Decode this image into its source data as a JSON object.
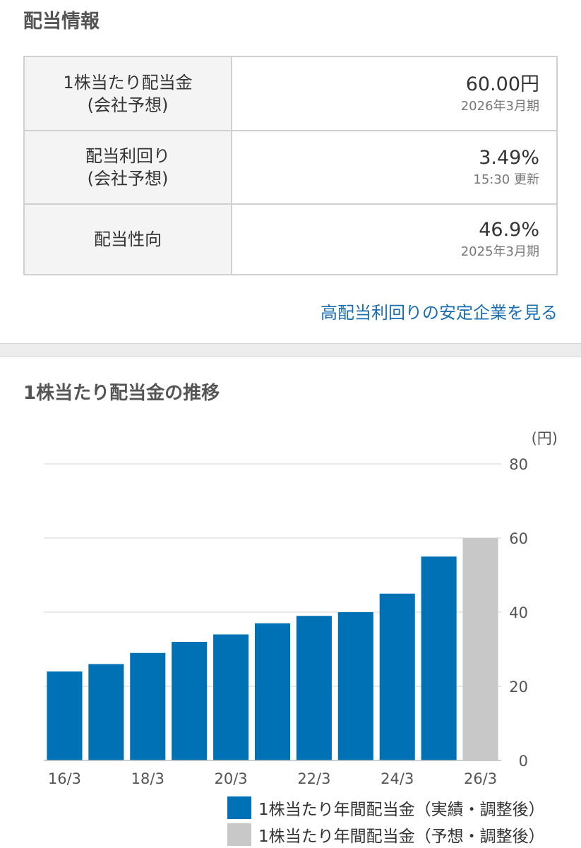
{
  "section_title": "配当情報",
  "rows": [
    {
      "label_line1": "1株当たり配当金",
      "label_line2": "(会社予想)",
      "value": "60.00円",
      "sub": "2026年3月期"
    },
    {
      "label_line1": "配当利回り",
      "label_line2": "(会社予想)",
      "value": "3.49%",
      "sub": "15:30 更新"
    },
    {
      "label_line1": "配当性向",
      "label_line2": "",
      "value": "46.9%",
      "sub": "2025年3月期"
    }
  ],
  "link_text": "高配当利回りの安定企業を見る",
  "chart_title": "1株当たり配当金の推移",
  "chart_data": {
    "type": "bar",
    "categories": [
      "16/3",
      "17/3",
      "18/3",
      "19/3",
      "20/3",
      "21/3",
      "22/3",
      "23/3",
      "24/3",
      "25/3",
      "26/3"
    ],
    "x_tick_labels": [
      "16/3",
      "18/3",
      "20/3",
      "22/3",
      "24/3",
      "26/3"
    ],
    "series": [
      {
        "name": "1株当たり年間配当金（実績・調整後）",
        "color": "#0071b5",
        "values": [
          24,
          26,
          29,
          32,
          34,
          37,
          39,
          40,
          45,
          55,
          null
        ]
      },
      {
        "name": "1株当たり年間配当金（予想・調整後）",
        "color": "#c8c8c8",
        "values": [
          null,
          null,
          null,
          null,
          null,
          null,
          null,
          null,
          null,
          null,
          60
        ]
      }
    ],
    "unit": "(円)",
    "yticks": [
      0,
      20,
      40,
      60,
      80
    ],
    "ylim": [
      0,
      80
    ],
    "grid": true,
    "legend_position": "bottom-right"
  }
}
